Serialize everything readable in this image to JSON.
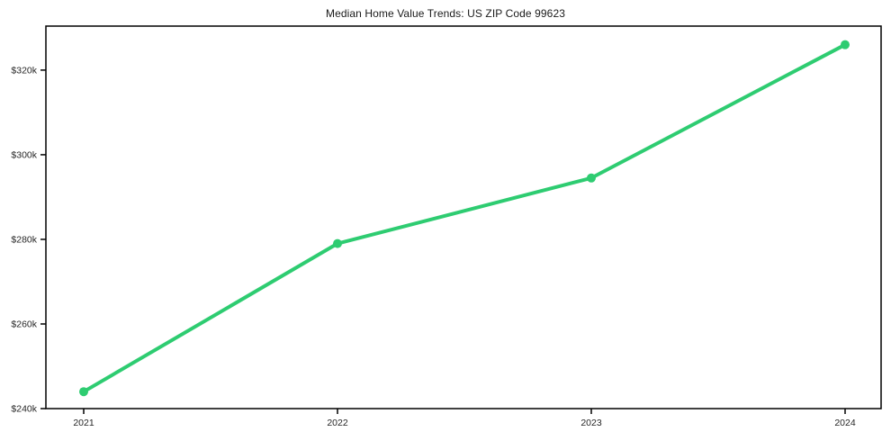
{
  "chart_data": {
    "type": "line",
    "title": "Median Home Value Trends: US ZIP Code 99623",
    "xlabel": "",
    "ylabel": "",
    "x": [
      2021,
      2022,
      2023,
      2024
    ],
    "x_tick_labels": [
      "2021",
      "2022",
      "2023",
      "2024"
    ],
    "series": [
      {
        "name": "Median Home Value",
        "values": [
          244000,
          279000,
          294500,
          326000
        ]
      }
    ],
    "y_ticks": [
      240000,
      260000,
      280000,
      300000,
      320000
    ],
    "y_tick_labels": [
      "$240k",
      "$260k",
      "$280k",
      "$300k",
      "$320k"
    ],
    "ylim": [
      240000,
      330400
    ],
    "grid": false,
    "legend_position": "none",
    "marker": "circle"
  },
  "colors": {
    "line": "#2ecc71",
    "marker": "#2ecc71",
    "axis": "#000000",
    "tick_text": "#262626",
    "title_text": "#1a1a1a",
    "background": "#ffffff"
  }
}
